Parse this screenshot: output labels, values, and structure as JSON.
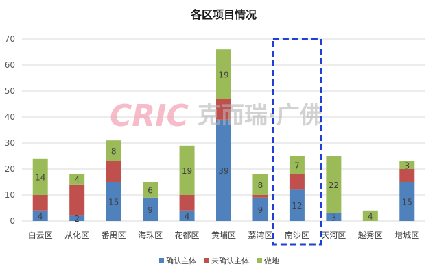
{
  "chart_data": {
    "type": "bar",
    "stacked": true,
    "title": "各区项目情况",
    "categories": [
      "白云区",
      "从化区",
      "番禺区",
      "海珠区",
      "花都区",
      "黄埔区",
      "荔湾区",
      "南沙区",
      "天河区",
      "越秀区",
      "增城区"
    ],
    "series": [
      {
        "name": "确认主体",
        "color": "#4f81bd",
        "values": [
          4,
          2,
          15,
          9,
          4,
          39,
          9,
          12,
          3,
          0,
          15
        ],
        "labels_shown": true
      },
      {
        "name": "未确认主体",
        "color": "#c0504d",
        "values": [
          6,
          12,
          8,
          0,
          6,
          8,
          1,
          6,
          0,
          0,
          5
        ],
        "labels_shown": false
      },
      {
        "name": "做地",
        "color": "#9bbb59",
        "values": [
          14,
          4,
          8,
          6,
          19,
          19,
          8,
          7,
          22,
          4,
          3
        ],
        "labels_shown": true
      }
    ],
    "ylim": [
      0,
      70
    ],
    "yticks": [
      0,
      10,
      20,
      30,
      40,
      50,
      60,
      70
    ],
    "grid": true,
    "legend": "bottom",
    "highlight": {
      "category": "南沙区",
      "style": "dashed-box",
      "color": "#1f3fd6"
    }
  },
  "watermark": {
    "logo": "CRIC",
    "text": "克而瑞·广佛"
  }
}
